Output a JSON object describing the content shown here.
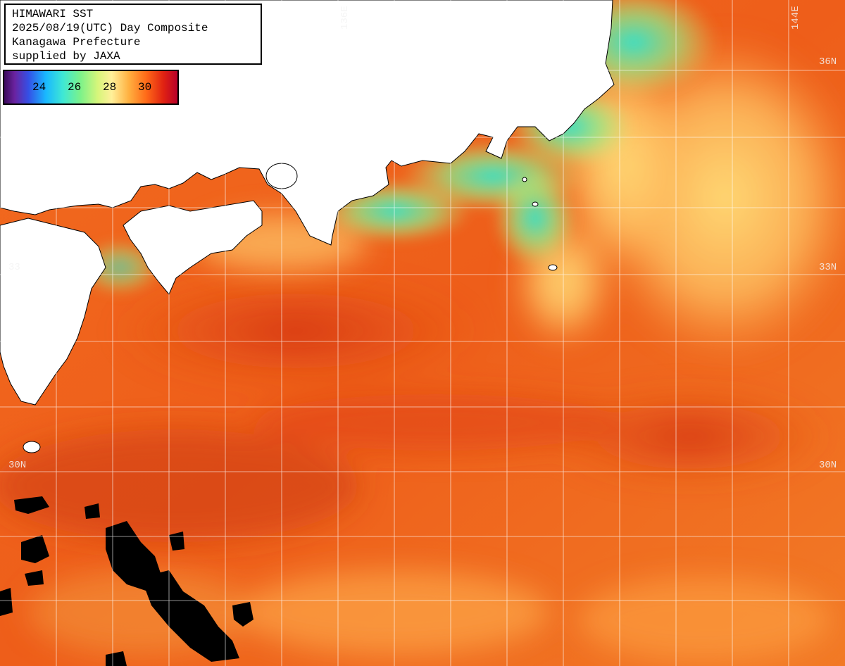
{
  "title": {
    "line1": "HIMAWARI SST",
    "line2": "2025/08/19(UTC) Day Composite",
    "line3": "Kanagawa Prefecture",
    "line4": "supplied by JAXA"
  },
  "legend": {
    "ticks": [
      "24",
      "26",
      "28",
      "30"
    ],
    "min_color": "#3a0a5a",
    "max_color": "#b8002a"
  },
  "grid": {
    "lon_labels": [
      "136E",
      "144E"
    ],
    "lat_labels": [
      "36N",
      "33N",
      "30N"
    ],
    "lat_labels_left": [
      "33",
      "30N"
    ]
  },
  "colors": {
    "land": "#ffffff",
    "cloud_mask": "#000000",
    "warm_sea": "#f06a1e",
    "hot_sea": "#d83410",
    "cool_coastal": "#2ae6d2",
    "mild_sea": "#ffd870",
    "gridline": "#ffffff"
  }
}
